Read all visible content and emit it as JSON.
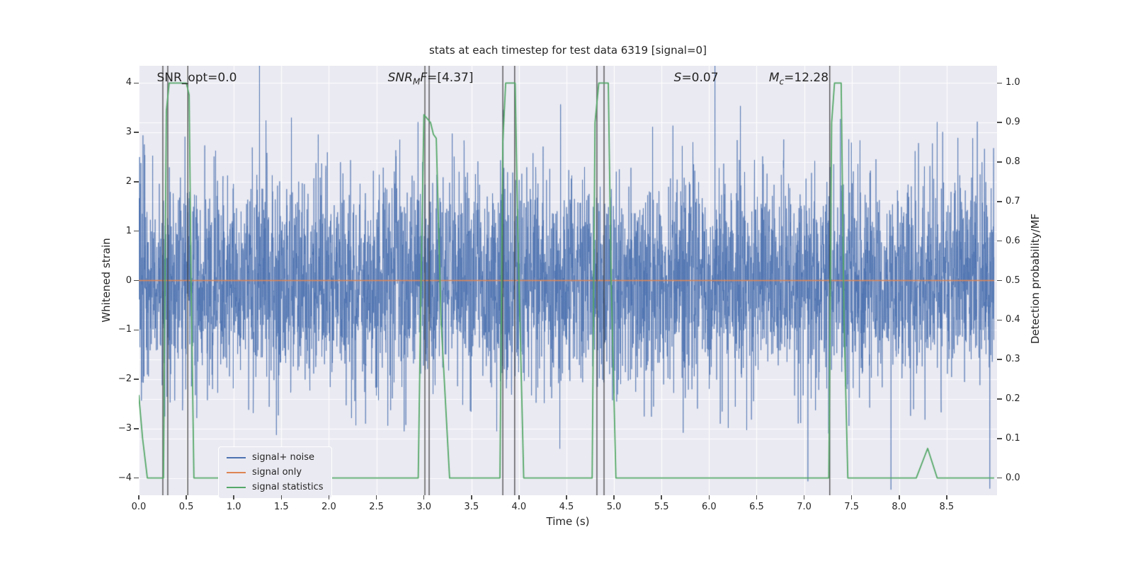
{
  "chart_data": {
    "type": "line",
    "title": "stats at each timestep for test data 6319 [signal=0]",
    "xlabel": "Time (s)",
    "ylabel_left": "Whitened strain",
    "ylabel_right": "Detection probability/MF",
    "xlim": [
      0,
      9.03
    ],
    "ylim_left": [
      -4.35,
      4.35
    ],
    "right_axis_map": "left_value = 8 * right_value - 4",
    "background": "#eaeaf2",
    "grid_color": "#ffffff",
    "text_color": "#262626",
    "grid": true,
    "legend_position": "lower left",
    "x_ticks": {
      "values": [
        0,
        0.5,
        1,
        1.5,
        2,
        2.5,
        3,
        3.5,
        4,
        4.5,
        5,
        5.5,
        6,
        6.5,
        7,
        7.5,
        8,
        8.5
      ],
      "labels": [
        "0.0",
        "0.5",
        "1.0",
        "1.5",
        "2.0",
        "2.5",
        "3.0",
        "3.5",
        "4.0",
        "4.5",
        "5.0",
        "5.5",
        "6.0",
        "6.5",
        "7.0",
        "7.5",
        "8.0",
        "8.5"
      ]
    },
    "y_ticks_left": {
      "values": [
        4,
        3,
        2,
        1,
        0,
        -1,
        -2,
        -3,
        -4
      ],
      "labels": [
        "4",
        "3",
        "2",
        "1",
        "0",
        "−1",
        "−2",
        "−3",
        "−4"
      ]
    },
    "y_ticks_right": {
      "values": [
        1.0,
        0.9,
        0.8,
        0.7,
        0.6,
        0.5,
        0.4,
        0.3,
        0.2,
        0.1,
        0.0
      ],
      "labels": [
        "1.0",
        "0.9",
        "0.8",
        "0.7",
        "0.6",
        "0.5",
        "0.4",
        "0.3",
        "0.2",
        "0.1",
        "0.0"
      ]
    },
    "series": [
      {
        "name": "signal+ noise",
        "color": "#4c72b0",
        "kind": "gaussian-noise",
        "axis": "left",
        "seed": 6319,
        "n": 4500,
        "dt": 0.002,
        "std": 1.08,
        "alpha": 0.72
      },
      {
        "name": "signal only",
        "color": "#dd8452",
        "kind": "constant",
        "axis": "left",
        "value": 0,
        "x_start": 0,
        "x_end": 9.0
      },
      {
        "name": "signal statistics",
        "color": "#55a868",
        "kind": "points",
        "axis": "right",
        "points": [
          [
            0,
            0.21
          ],
          [
            0.04,
            0.1
          ],
          [
            0.09,
            0.0
          ],
          [
            0.26,
            0.0
          ],
          [
            0.29,
            0.93
          ],
          [
            0.32,
            1.0
          ],
          [
            0.5,
            1.0
          ],
          [
            0.53,
            0.97
          ],
          [
            0.55,
            0.5
          ],
          [
            0.58,
            0.0
          ],
          [
            2.94,
            0.0
          ],
          [
            2.97,
            0.5
          ],
          [
            3.0,
            0.92
          ],
          [
            3.07,
            0.9
          ],
          [
            3.1,
            0.87
          ],
          [
            3.13,
            0.86
          ],
          [
            3.18,
            0.4
          ],
          [
            3.27,
            0.0
          ],
          [
            3.8,
            0.0
          ],
          [
            3.83,
            0.85
          ],
          [
            3.86,
            1.0
          ],
          [
            3.96,
            1.0
          ],
          [
            3.99,
            0.6
          ],
          [
            4.05,
            0.0
          ],
          [
            4.77,
            0.0
          ],
          [
            4.8,
            0.9
          ],
          [
            4.84,
            1.0
          ],
          [
            4.94,
            1.0
          ],
          [
            4.97,
            0.5
          ],
          [
            5.02,
            0.0
          ],
          [
            7.26,
            0.0
          ],
          [
            7.29,
            0.9
          ],
          [
            7.32,
            1.0
          ],
          [
            7.39,
            1.0
          ],
          [
            7.42,
            0.4
          ],
          [
            7.46,
            0.0
          ],
          [
            8.18,
            0.0
          ],
          [
            8.3,
            0.075
          ],
          [
            8.4,
            0.0
          ],
          [
            9.0,
            0.0
          ]
        ]
      }
    ],
    "vlines": {
      "color": "#3a3a3a",
      "xs": [
        0.253,
        0.305,
        0.515,
        3.01,
        3.055,
        3.83,
        3.955,
        4.82,
        4.895,
        7.27
      ]
    },
    "annotations": [
      {
        "x": 0.19,
        "segments": [
          {
            "text": "SNR_opt=0.0",
            "style": "plain"
          }
        ]
      },
      {
        "x": 2.62,
        "segments": [
          {
            "text": "SNR",
            "style": "italic"
          },
          {
            "text": "M",
            "style": "italic-sub"
          },
          {
            "text": "F",
            "style": "italic"
          },
          {
            "text": "=[4.37]",
            "style": "plain"
          }
        ]
      },
      {
        "x": 5.63,
        "segments": [
          {
            "text": "S",
            "style": "italic"
          },
          {
            "text": "=0.07",
            "style": "plain"
          }
        ]
      },
      {
        "x": 6.63,
        "segments": [
          {
            "text": "M",
            "style": "italic"
          },
          {
            "text": "c",
            "style": "italic-sub"
          },
          {
            "text": "=12.28",
            "style": "plain"
          }
        ]
      }
    ]
  }
}
